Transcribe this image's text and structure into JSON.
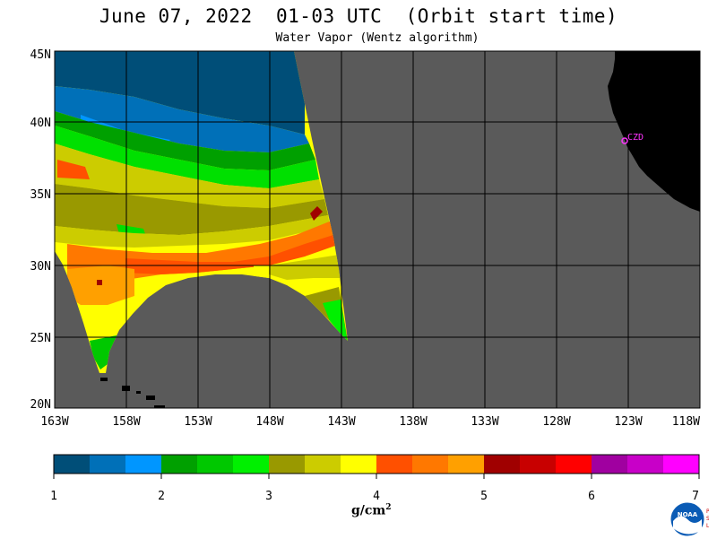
{
  "title": "June 07, 2022  01-03 UTC  (Orbit start time)",
  "subtitle": "Water Vapor (Wentz algorithm)",
  "map": {
    "lat_labels": [
      "45N",
      "40N",
      "35N",
      "30N",
      "25N",
      "20N"
    ],
    "lon_labels": [
      "163W",
      "158W",
      "153W",
      "148W",
      "143W",
      "138W",
      "133W",
      "128W",
      "123W",
      "118W"
    ],
    "station_label": "CZD",
    "colors": {
      "ocean": "#5a5a5a",
      "land": "#000000",
      "grid": "#000000",
      "station": "#ff33ff"
    }
  },
  "colorbar": {
    "tick_labels": [
      "1",
      "2",
      "3",
      "4",
      "5",
      "6",
      "7"
    ],
    "units_text": "g/cm",
    "units_exp": "2",
    "colors": [
      "#004e78",
      "#0070b8",
      "#0096ff",
      "#00a000",
      "#00c800",
      "#00f000",
      "#999900",
      "#cccc00",
      "#ffff00",
      "#ff5000",
      "#ff7800",
      "#ffa000",
      "#a00000",
      "#c80000",
      "#ff0000",
      "#a000a0",
      "#c800c8",
      "#ff00ff"
    ]
  },
  "logo": {
    "text": "NOAA",
    "side": [
      "P",
      "S",
      "L"
    ]
  }
}
